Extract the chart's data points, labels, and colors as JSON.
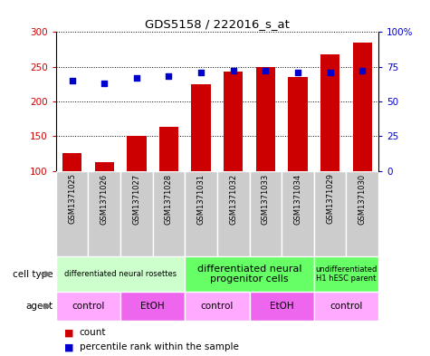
{
  "title": "GDS5158 / 222016_s_at",
  "samples": [
    "GSM1371025",
    "GSM1371026",
    "GSM1371027",
    "GSM1371028",
    "GSM1371031",
    "GSM1371032",
    "GSM1371033",
    "GSM1371034",
    "GSM1371029",
    "GSM1371030"
  ],
  "counts": [
    125,
    113,
    151,
    163,
    225,
    243,
    249,
    235,
    268,
    285
  ],
  "percentile_ranks": [
    65,
    63,
    67,
    68,
    71,
    72,
    72,
    71,
    71,
    72
  ],
  "ylim_left": [
    100,
    300
  ],
  "ylim_right": [
    0,
    100
  ],
  "yticks_left": [
    100,
    150,
    200,
    250,
    300
  ],
  "yticks_right": [
    0,
    25,
    50,
    75,
    100
  ],
  "bar_color": "#cc0000",
  "dot_color": "#0000cc",
  "cell_type_groups": [
    {
      "label": "differentiated neural rosettes",
      "span": [
        0,
        4
      ],
      "color": "#ccffcc",
      "fontsize": 6
    },
    {
      "label": "differentiated neural\nprogenitor cells",
      "span": [
        4,
        8
      ],
      "color": "#66ff66",
      "fontsize": 8
    },
    {
      "label": "undifferentiated\nH1 hESC parent",
      "span": [
        8,
        10
      ],
      "color": "#66ff66",
      "fontsize": 6
    }
  ],
  "agent_groups": [
    {
      "label": "control",
      "span": [
        0,
        2
      ],
      "color": "#ffaaff"
    },
    {
      "label": "EtOH",
      "span": [
        2,
        4
      ],
      "color": "#ee66ee"
    },
    {
      "label": "control",
      "span": [
        4,
        6
      ],
      "color": "#ffaaff"
    },
    {
      "label": "EtOH",
      "span": [
        6,
        8
      ],
      "color": "#ee66ee"
    },
    {
      "label": "control",
      "span": [
        8,
        10
      ],
      "color": "#ffaaff"
    }
  ],
  "legend_count_color": "#cc0000",
  "legend_percentile_color": "#0000cc",
  "sample_bg_color": "#cccccc",
  "ylabel_left_color": "#cc0000",
  "ylabel_right_color": "#0000cc",
  "label_left_arrow_color": "#777777"
}
